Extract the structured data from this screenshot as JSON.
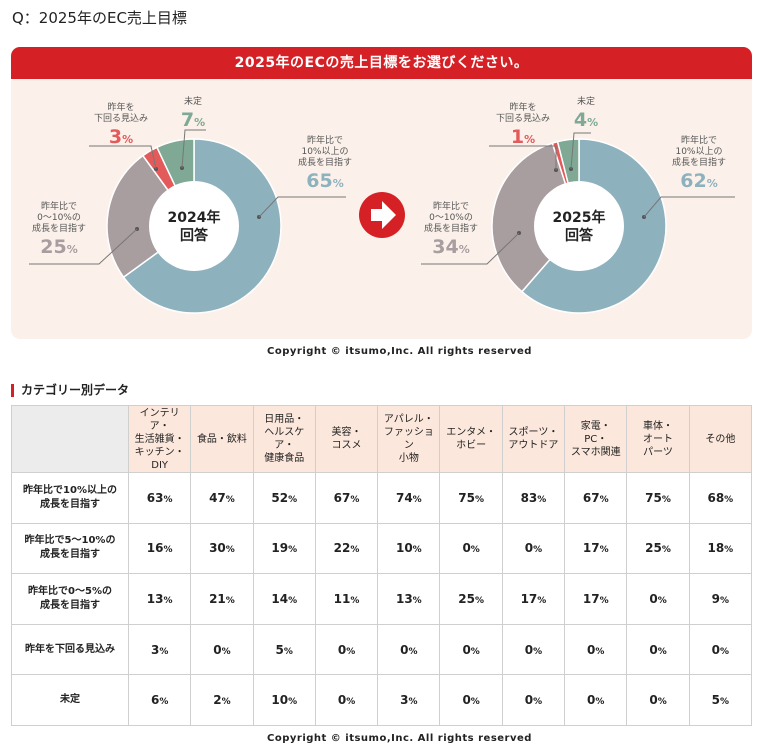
{
  "question": "Q：2025年のEC売上目標",
  "banner": "2025年のECの売上目標をお選びください。",
  "copyright": "Copyright © itsumo,Inc. All rights reserved",
  "section_heading": "カテゴリー別データ",
  "colors": {
    "up10": "#8eb1be",
    "up0to10": "#a89d9f",
    "below": "#e35a5a",
    "undecided": "#7fa895",
    "accent": "#d52026"
  },
  "chart_data": [
    {
      "type": "pie",
      "center_label": [
        "2024年",
        "回答"
      ],
      "slices": [
        {
          "label": [
            "昨年比で",
            "10%以上の",
            "成長を目指す"
          ],
          "value": 65,
          "value_text": "65",
          "color_key": "up10"
        },
        {
          "label": [
            "昨年比で",
            "0～10%の",
            "成長を目指す"
          ],
          "value": 25,
          "value_text": "25",
          "color_key": "up0to10"
        },
        {
          "label": [
            "昨年を",
            "下回る見込み"
          ],
          "value": 3,
          "value_text": "3",
          "color_key": "below"
        },
        {
          "label": [
            "未定"
          ],
          "value": 7,
          "value_text": "7",
          "color_key": "undecided"
        }
      ]
    },
    {
      "type": "pie",
      "center_label": [
        "2025年",
        "回答"
      ],
      "slices": [
        {
          "label": [
            "昨年比で",
            "10%以上の",
            "成長を目指す"
          ],
          "value": 62,
          "value_text": "62",
          "color_key": "up10"
        },
        {
          "label": [
            "昨年比で",
            "0～10%の",
            "成長を目指す"
          ],
          "value": 34,
          "value_text": "34",
          "color_key": "up0to10"
        },
        {
          "label": [
            "昨年を",
            "下回る見込み"
          ],
          "value": 1,
          "value_text": "1",
          "color_key": "below"
        },
        {
          "label": [
            "未定"
          ],
          "value": 4,
          "value_text": "4",
          "color_key": "undecided"
        }
      ]
    }
  ],
  "table": {
    "columns": [
      "インテリア・\n生活雑貨・\nキッチン・\nDIY",
      "食品・飲料",
      "日用品・\nヘルスケア・\n健康食品",
      "美容・\nコスメ",
      "アパレル・\nファッション\n小物",
      "エンタメ・\nホビー",
      "スポーツ・\nアウトドア",
      "家電・\nPC・\nスマホ関連",
      "車体・\nオート\nパーツ",
      "その他"
    ],
    "rows": [
      {
        "label": "昨年比で10%以上の\n成長を目指す",
        "values": [
          "63%",
          "47%",
          "52%",
          "67%",
          "74%",
          "75%",
          "83%",
          "67%",
          "75%",
          "68%"
        ]
      },
      {
        "label": "昨年比で5～10%の\n成長を目指す",
        "values": [
          "16%",
          "30%",
          "19%",
          "22%",
          "10%",
          "0%",
          "0%",
          "17%",
          "25%",
          "18%"
        ]
      },
      {
        "label": "昨年比で0～5%の\n成長を目指す",
        "values": [
          "13%",
          "21%",
          "14%",
          "11%",
          "13%",
          "25%",
          "17%",
          "17%",
          "0%",
          "9%"
        ]
      },
      {
        "label": "昨年を下回る見込み",
        "values": [
          "3%",
          "0%",
          "5%",
          "0%",
          "0%",
          "0%",
          "0%",
          "0%",
          "0%",
          "0%"
        ]
      },
      {
        "label": "未定",
        "values": [
          "6%",
          "2%",
          "10%",
          "0%",
          "3%",
          "0%",
          "0%",
          "0%",
          "0%",
          "5%"
        ]
      }
    ]
  }
}
